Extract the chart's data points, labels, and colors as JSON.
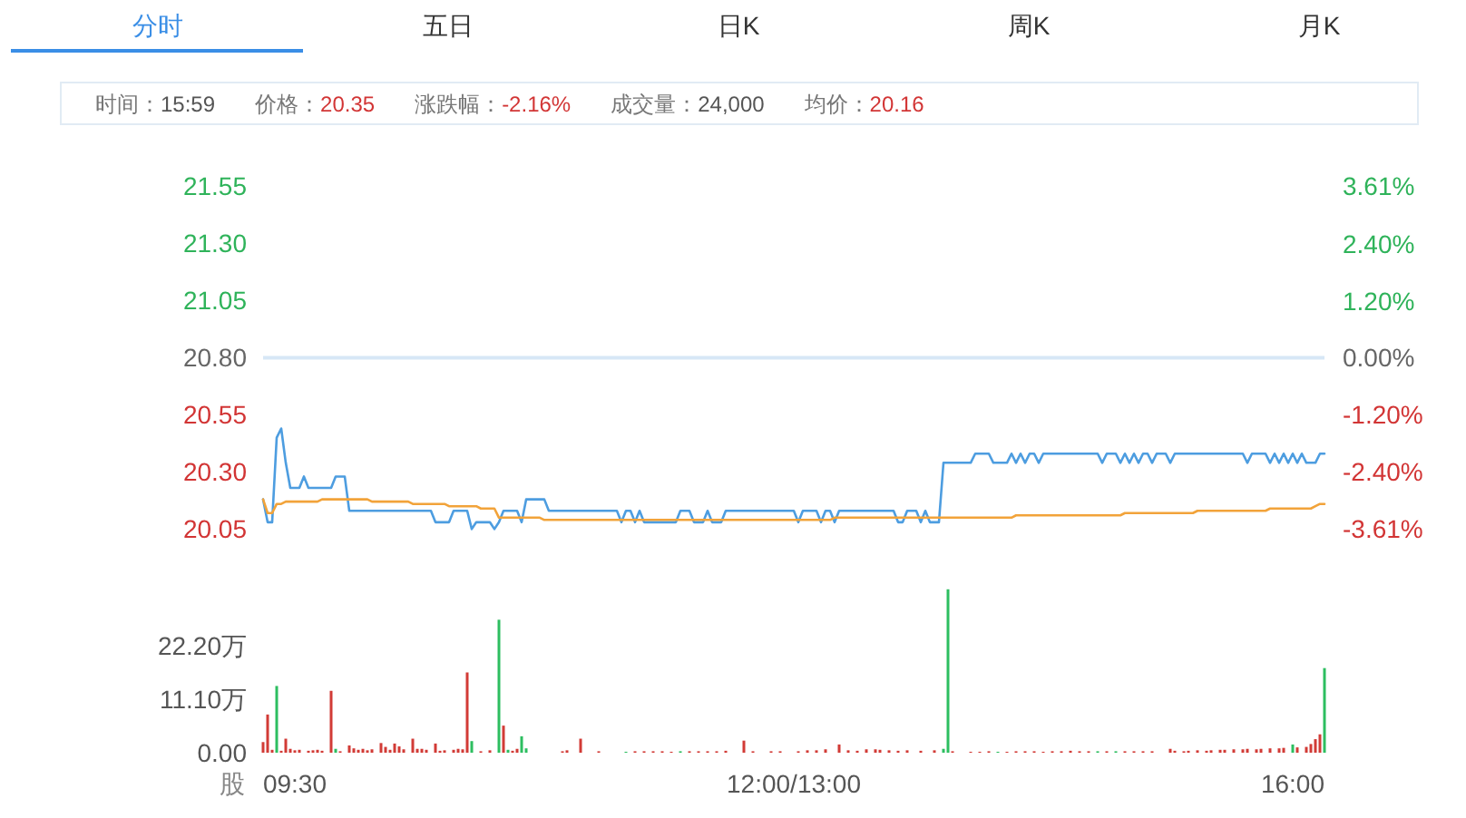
{
  "chart_data": [
    {
      "type": "other",
      "categories": [
        "分时",
        "五日",
        "日K",
        "周K",
        "月K"
      ],
      "annotations": [
        "时间：",
        "15:59",
        "价格：",
        "20.35",
        "涨跌幅：",
        "-2.16%",
        "成交量：",
        "24,000",
        "均价：",
        "20.16"
      ]
    },
    {
      "type": "line",
      "categories": [
        null,
        null,
        null,
        null,
        null,
        null,
        null,
        null,
        null,
        null,
        null,
        null,
        null,
        null,
        null,
        null,
        null,
        null,
        null,
        null,
        null,
        null,
        null,
        null,
        null,
        null,
        null,
        null,
        null,
        null,
        null,
        null,
        null,
        null,
        null,
        null,
        null,
        null,
        null,
        null,
        null,
        null,
        null,
        null,
        null,
        null,
        null,
        null,
        null,
        null,
        null,
        null,
        null,
        null,
        null,
        null,
        null,
        null,
        null,
        null,
        null,
        null,
        null,
        null,
        null,
        null,
        null,
        null,
        null,
        null,
        null,
        null,
        null,
        null,
        null,
        null,
        null,
        null,
        null,
        null,
        null,
        null,
        null,
        null,
        null,
        null,
        null,
        null,
        null,
        null,
        null,
        null,
        null,
        null,
        null,
        null,
        null,
        null,
        null,
        null,
        null,
        null,
        null,
        null,
        null,
        null,
        null,
        null,
        null,
        null,
        null,
        null,
        null,
        null,
        null,
        null,
        null,
        null,
        null,
        null,
        null,
        null,
        null,
        null,
        null,
        null,
        null,
        null,
        null,
        null,
        null,
        null,
        null,
        null,
        null,
        null,
        null,
        null,
        null,
        null,
        null,
        null,
        null,
        null,
        null,
        null,
        null,
        null,
        null,
        null,
        null,
        null,
        null,
        null,
        null,
        null,
        null,
        null,
        null,
        null,
        null,
        null,
        null,
        null,
        null,
        null,
        null,
        null,
        null,
        null,
        null,
        null,
        null,
        null,
        null,
        null,
        null,
        null,
        null,
        null,
        null,
        null,
        null,
        null,
        null,
        null,
        null,
        null,
        null,
        null,
        null,
        null,
        null,
        null,
        null,
        null,
        null,
        null,
        null,
        null,
        null,
        null,
        null,
        null,
        null,
        null,
        null,
        null,
        null,
        null,
        null,
        null,
        null,
        null,
        null,
        null,
        null,
        null,
        null,
        null,
        null,
        null,
        null,
        null,
        null,
        null,
        null,
        null,
        null,
        null,
        null,
        null,
        null,
        null,
        null
      ],
      "ylim": [
        20.05,
        21.55
      ],
      "yticks": [
        21.55,
        {
          "value": 21.3,
          "label": "21.30"
        },
        21.05,
        {
          "value": 20.8,
          "label": "20.80"
        },
        20.55,
        {
          "value": 20.3,
          "label": "20.30"
        },
        20.05
      ],
      "y2lim": [
        -3.61,
        3.61
      ],
      "y2ticks": [
        {
          "value": 3.61,
          "label": "3.61%"
        },
        {
          "value": 2.4,
          "label": "2.40%"
        },
        {
          "value": 1.2,
          "label": "1.20%"
        },
        {
          "value": 0,
          "label": "0.00%"
        },
        {
          "value": -1.2,
          "label": "-1.20%"
        },
        {
          "value": -2.4,
          "label": "-2.40%"
        },
        {
          "value": -3.61,
          "label": "-3.61%"
        }
      ],
      "tick_labels": "y",
      "ref_lines": [
        {
          "axis": "y",
          "value": 20.8,
          "color": "#d7e7f6"
        }
      ],
      "series": [
        {
          "color": "#4d9de0",
          "values": [
            20.18,
            20.08,
            20.08,
            20.45,
            20.49,
            20.34,
            20.23,
            20.23,
            20.23,
            20.28,
            20.23,
            20.23,
            20.23,
            20.23,
            20.23,
            20.23,
            20.28,
            20.28,
            20.28,
            20.13,
            20.13,
            20.13,
            20.13,
            20.13,
            20.13,
            20.13,
            20.13,
            20.13,
            20.13,
            20.13,
            20.13,
            20.13,
            20.13,
            20.13,
            20.13,
            20.13,
            20.13,
            20.13,
            20.08,
            20.08,
            20.08,
            20.08,
            20.13,
            20.13,
            20.13,
            20.13,
            20.05,
            20.08,
            20.08,
            20.08,
            20.08,
            20.05,
            20.08,
            20.13,
            20.13,
            20.13,
            20.13,
            20.08,
            20.18,
            20.18,
            20.18,
            20.18,
            20.18,
            20.13,
            20.13,
            20.13,
            20.13,
            20.13,
            20.13,
            20.13,
            20.13,
            20.13,
            20.13,
            20.13,
            20.13,
            20.13,
            20.13,
            20.13,
            20.13,
            20.08,
            20.13,
            20.13,
            20.08,
            20.13,
            20.08,
            20.08,
            20.08,
            20.08,
            20.08,
            20.08,
            20.08,
            20.08,
            20.13,
            20.13,
            20.13,
            20.08,
            20.08,
            20.08,
            20.13,
            20.08,
            20.08,
            20.08,
            20.13,
            20.13,
            20.13,
            20.13,
            20.13,
            20.13,
            20.13,
            20.13,
            20.13,
            20.13,
            20.13,
            20.13,
            20.13,
            20.13,
            20.13,
            20.13,
            20.08,
            20.13,
            20.13,
            20.13,
            20.13,
            20.08,
            20.13,
            20.13,
            20.08,
            20.13,
            20.13,
            20.13,
            20.13,
            20.13,
            20.13,
            20.13,
            20.13,
            20.13,
            20.13,
            20.13,
            20.13,
            20.13,
            20.08,
            20.08,
            20.13,
            20.13,
            20.13,
            20.08,
            20.13,
            20.08,
            20.08,
            20.08,
            20.34,
            20.34,
            20.34,
            20.34,
            20.34,
            20.34,
            20.34,
            20.38,
            20.38,
            20.38,
            20.38,
            20.34,
            20.34,
            20.34,
            20.34,
            20.38,
            20.34,
            20.38,
            20.34,
            20.38,
            20.38,
            20.34,
            20.38,
            20.38,
            20.38,
            20.38,
            20.38,
            20.38,
            20.38,
            20.38,
            20.38,
            20.38,
            20.38,
            20.38,
            20.38,
            20.34,
            20.38,
            20.38,
            20.38,
            20.34,
            20.38,
            20.34,
            20.38,
            20.34,
            20.38,
            20.38,
            20.34,
            20.38,
            20.38,
            20.38,
            20.34,
            20.38,
            20.38,
            20.38,
            20.38,
            20.38,
            20.38,
            20.38,
            20.38,
            20.38,
            20.38,
            20.38,
            20.38,
            20.38,
            20.38,
            20.38,
            20.38,
            20.34,
            20.38,
            20.38,
            20.38,
            20.38,
            20.34,
            20.38,
            20.34,
            20.38,
            20.34,
            20.38,
            20.34,
            20.38,
            20.34,
            20.34,
            20.34,
            20.38,
            20.38
          ]
        },
        {
          "color": "#f2a33a",
          "values": [
            20.18,
            20.12,
            20.12,
            20.16,
            20.16,
            20.17,
            20.17,
            20.17,
            20.17,
            20.17,
            20.17,
            20.17,
            20.17,
            20.18,
            20.18,
            20.18,
            20.18,
            20.18,
            20.18,
            20.18,
            20.18,
            20.18,
            20.18,
            20.18,
            20.17,
            20.17,
            20.17,
            20.17,
            20.17,
            20.17,
            20.17,
            20.17,
            20.17,
            20.16,
            20.16,
            20.16,
            20.16,
            20.16,
            20.16,
            20.16,
            20.16,
            20.15,
            20.15,
            20.15,
            20.15,
            20.15,
            20.15,
            20.15,
            20.14,
            20.14,
            20.14,
            20.14,
            20.1,
            20.1,
            20.1,
            20.1,
            20.1,
            20.1,
            20.1,
            20.1,
            20.1,
            20.1,
            20.09,
            20.09,
            20.09,
            20.09,
            20.09,
            20.09,
            20.09,
            20.09,
            20.09,
            20.09,
            20.09,
            20.09,
            20.09,
            20.09,
            20.09,
            20.09,
            20.09,
            20.09,
            20.09,
            20.09,
            20.09,
            20.09,
            20.09,
            20.09,
            20.09,
            20.09,
            20.09,
            20.09,
            20.09,
            20.09,
            20.09,
            20.09,
            20.09,
            20.09,
            20.09,
            20.09,
            20.09,
            20.09,
            20.09,
            20.09,
            20.09,
            20.09,
            20.09,
            20.09,
            20.09,
            20.09,
            20.09,
            20.09,
            20.09,
            20.09,
            20.09,
            20.09,
            20.09,
            20.09,
            20.09,
            20.09,
            20.09,
            20.09,
            20.09,
            20.09,
            20.09,
            20.09,
            20.09,
            20.09,
            20.1,
            20.1,
            20.1,
            20.1,
            20.1,
            20.1,
            20.1,
            20.1,
            20.1,
            20.1,
            20.1,
            20.1,
            20.1,
            20.1,
            20.1,
            20.1,
            20.1,
            20.1,
            20.1,
            20.1,
            20.1,
            20.1,
            20.1,
            20.1,
            20.1,
            20.1,
            20.1,
            20.1,
            20.1,
            20.1,
            20.1,
            20.1,
            20.1,
            20.1,
            20.1,
            20.1,
            20.1,
            20.1,
            20.1,
            20.1,
            20.11,
            20.11,
            20.11,
            20.11,
            20.11,
            20.11,
            20.11,
            20.11,
            20.11,
            20.11,
            20.11,
            20.11,
            20.11,
            20.11,
            20.11,
            20.11,
            20.11,
            20.11,
            20.11,
            20.11,
            20.11,
            20.11,
            20.11,
            20.11,
            20.12,
            20.12,
            20.12,
            20.12,
            20.12,
            20.12,
            20.12,
            20.12,
            20.12,
            20.12,
            20.12,
            20.12,
            20.12,
            20.12,
            20.12,
            20.12,
            20.13,
            20.13,
            20.13,
            20.13,
            20.13,
            20.13,
            20.13,
            20.13,
            20.13,
            20.13,
            20.13,
            20.13,
            20.13,
            20.13,
            20.13,
            20.13,
            20.14,
            20.14,
            20.14,
            20.14,
            20.14,
            20.14,
            20.14,
            20.14,
            20.14,
            20.14,
            20.15,
            20.16,
            20.16
          ]
        }
      ]
    },
    {
      "type": "bar",
      "categories": [
        null,
        null,
        null,
        null,
        null,
        null,
        null,
        "09:30",
        null,
        null,
        null,
        null,
        null,
        null,
        null,
        null,
        null,
        null,
        null,
        null,
        null,
        null,
        null,
        null,
        null,
        null,
        null,
        null,
        null,
        null,
        null,
        null,
        null,
        null,
        null,
        null,
        null,
        null,
        null,
        null,
        null,
        null,
        null,
        null,
        null,
        null,
        null,
        null,
        null,
        null,
        null,
        null,
        null,
        null,
        null,
        null,
        null,
        null,
        null,
        null,
        null,
        null,
        null,
        null,
        null,
        null,
        null,
        null,
        null,
        null,
        null,
        null,
        null,
        null,
        null,
        null,
        null,
        null,
        null,
        null,
        null,
        null,
        null,
        null,
        null,
        null,
        null,
        null,
        null,
        null,
        null,
        null,
        null,
        null,
        null,
        null,
        null,
        null,
        null,
        null,
        null,
        null,
        null,
        null,
        null,
        null,
        null,
        null,
        null,
        null,
        null,
        null,
        null,
        null,
        null,
        null,
        null,
        "12:00/13:00",
        null,
        null,
        null,
        null,
        null,
        null,
        null,
        null,
        null,
        null,
        null,
        null,
        null,
        null,
        null,
        null,
        null,
        null,
        null,
        null,
        null,
        null,
        null,
        null,
        null,
        null,
        null,
        null,
        null,
        null,
        null,
        null,
        null,
        null,
        null,
        null,
        null,
        null,
        null,
        null,
        null,
        null,
        null,
        null,
        null,
        null,
        null,
        null,
        null,
        null,
        null,
        null,
        null,
        null,
        null,
        null,
        null,
        null,
        null,
        null,
        null,
        null,
        null,
        null,
        null,
        null,
        null,
        null,
        null,
        null,
        null,
        null,
        null,
        null,
        null,
        null,
        null,
        null,
        null,
        null,
        null,
        null,
        null,
        null,
        null,
        null,
        null,
        null,
        null,
        null,
        null,
        null,
        null,
        null,
        null,
        null,
        null,
        null,
        null,
        null,
        null,
        null,
        null,
        null,
        null,
        null,
        null,
        null,
        null,
        "16:00",
        null,
        null,
        null,
        null,
        null,
        null,
        null
      ],
      "ylim": [
        0,
        33.8
      ],
      "yticks": [
        {
          "value": 0,
          "label": "0.00"
        },
        {
          "value": 11.1,
          "label": "11.10万"
        },
        {
          "value": 22.2,
          "label": "22.20万"
        }
      ],
      "ylabel": "股",
      "series": [
        {
          "color": "#d23b36",
          "values": [
            2.2,
            7.9,
            0.6,
            null,
            0.4,
            2.9,
            0.8,
            0.5,
            0.6,
            null,
            0.4,
            0.5,
            0.6,
            0.4,
            null,
            12.8,
            null,
            0.3,
            null,
            1.5,
            0.9,
            0.6,
            0.8,
            0.5,
            0.7,
            null,
            2.0,
            1.2,
            0.6,
            1.9,
            1.3,
            0.7,
            null,
            2.9,
            0.8,
            0.8,
            0.6,
            null,
            1.9,
            0.4,
            0.5,
            null,
            0.6,
            0.8,
            0.7,
            16.6,
            null,
            null,
            0.3,
            null,
            0.5,
            null,
            null,
            5.6,
            null,
            0.4,
            0.8,
            null,
            null,
            null,
            null,
            null,
            null,
            null,
            null,
            null,
            0.3,
            0.5,
            null,
            null,
            2.9,
            null,
            null,
            null,
            0.3,
            null,
            null,
            null,
            null,
            null,
            null,
            null,
            0.3,
            null,
            0.3,
            null,
            0.3,
            null,
            0.3,
            null,
            0.2,
            null,
            null,
            null,
            0.3,
            null,
            0.3,
            null,
            0.3,
            null,
            0.3,
            null,
            0.4,
            null,
            null,
            null,
            2.5,
            null,
            0.3,
            null,
            null,
            null,
            0.3,
            null,
            0.3,
            null,
            null,
            null,
            0.3,
            null,
            0.5,
            null,
            0.5,
            null,
            0.7,
            null,
            null,
            1.7,
            null,
            0.5,
            null,
            0.4,
            null,
            0.7,
            null,
            0.7,
            0.6,
            null,
            0.5,
            null,
            0.4,
            null,
            0.5,
            null,
            null,
            0.4,
            null,
            null,
            0.5,
            null,
            null,
            null,
            0.3,
            null,
            null,
            null,
            0.2,
            null,
            0.2,
            null,
            0.3,
            null,
            null,
            null,
            0.2,
            null,
            0.3,
            null,
            0.3,
            null,
            0.3,
            null,
            0.2,
            null,
            0.3,
            null,
            0.3,
            null,
            0.4,
            null,
            0.3,
            null,
            0.3,
            null,
            null,
            null,
            0.3,
            null,
            null,
            null,
            0.3,
            null,
            0.3,
            null,
            0.3,
            null,
            0.3,
            null,
            null,
            null,
            0.8,
            0.4,
            null,
            0.3,
            0.4,
            null,
            0.5,
            null,
            0.4,
            0.5,
            null,
            0.6,
            0.6,
            null,
            0.7,
            null,
            0.7,
            0.8,
            null,
            0.7,
            0.8,
            null,
            0.9,
            null,
            0.9,
            1.0,
            null,
            null,
            1.1,
            null,
            1.2,
            1.8,
            2.8,
            3.8,
            null
          ]
        },
        {
          "color": "#2dbe60",
          "values": [
            null,
            null,
            null,
            13.8,
            null,
            null,
            null,
            null,
            null,
            null,
            null,
            null,
            null,
            null,
            null,
            null,
            0.8,
            null,
            null,
            null,
            null,
            null,
            null,
            null,
            null,
            null,
            null,
            null,
            null,
            null,
            null,
            null,
            null,
            null,
            null,
            null,
            null,
            null,
            null,
            null,
            null,
            null,
            null,
            null,
            null,
            null,
            2.4,
            null,
            null,
            null,
            null,
            null,
            27.5,
            null,
            0.6,
            null,
            null,
            3.4,
            0.9,
            null,
            null,
            null,
            null,
            null,
            null,
            null,
            null,
            null,
            null,
            null,
            null,
            null,
            null,
            null,
            null,
            null,
            null,
            null,
            null,
            null,
            0.2,
            null,
            null,
            null,
            null,
            null,
            null,
            null,
            null,
            null,
            null,
            null,
            0.3,
            null,
            null,
            null,
            null,
            null,
            null,
            null,
            null,
            null,
            null,
            null,
            null,
            null,
            null,
            null,
            null,
            null,
            null,
            null,
            null,
            null,
            null,
            null,
            null,
            null,
            null,
            null,
            null,
            null,
            null,
            null,
            null,
            null,
            null,
            null,
            null,
            null,
            null,
            null,
            null,
            null,
            null,
            null,
            null,
            null,
            null,
            null,
            null,
            null,
            null,
            null,
            null,
            null,
            null,
            null,
            null,
            null,
            0.8,
            33.8,
            null,
            null,
            null,
            null,
            null,
            null,
            null,
            null,
            null,
            null,
            0.2,
            null,
            null,
            null,
            null,
            null,
            null,
            null,
            null,
            null,
            null,
            null,
            null,
            null,
            null,
            null,
            null,
            null,
            null,
            null,
            null,
            null,
            0.3,
            null,
            null,
            null,
            0.3,
            null,
            null,
            null,
            null,
            null,
            null,
            null,
            null,
            null,
            null,
            null,
            null,
            null,
            null,
            null,
            null,
            null,
            null,
            null,
            null,
            null,
            null,
            null,
            null,
            null,
            null,
            null,
            null,
            null,
            null,
            null,
            null,
            null,
            null,
            null,
            null,
            null,
            null,
            1.7,
            null,
            null,
            null,
            null,
            null,
            null,
            17.5
          ]
        }
      ]
    }
  ]
}
